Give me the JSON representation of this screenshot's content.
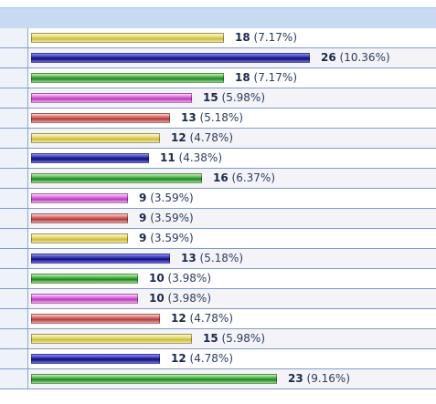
{
  "poll_results": {
    "rows": [
      {
        "count": "18",
        "percent": "(7.17%)",
        "share": 7.17,
        "color": "yellow"
      },
      {
        "count": "26",
        "percent": "(10.36%)",
        "share": 10.36,
        "color": "blue"
      },
      {
        "count": "18",
        "percent": "(7.17%)",
        "share": 7.17,
        "color": "green"
      },
      {
        "count": "15",
        "percent": "(5.98%)",
        "share": 5.98,
        "color": "pink"
      },
      {
        "count": "13",
        "percent": "(5.18%)",
        "share": 5.18,
        "color": "red"
      },
      {
        "count": "12",
        "percent": "(4.78%)",
        "share": 4.78,
        "color": "yellow"
      },
      {
        "count": "11",
        "percent": "(4.38%)",
        "share": 4.38,
        "color": "blue"
      },
      {
        "count": "16",
        "percent": "(6.37%)",
        "share": 6.37,
        "color": "green"
      },
      {
        "count": "9",
        "percent": "(3.59%)",
        "share": 3.59,
        "color": "pink"
      },
      {
        "count": "9",
        "percent": "(3.59%)",
        "share": 3.59,
        "color": "red"
      },
      {
        "count": "9",
        "percent": "(3.59%)",
        "share": 3.59,
        "color": "yellow"
      },
      {
        "count": "13",
        "percent": "(5.18%)",
        "share": 5.18,
        "color": "blue"
      },
      {
        "count": "10",
        "percent": "(3.98%)",
        "share": 3.98,
        "color": "green"
      },
      {
        "count": "10",
        "percent": "(3.98%)",
        "share": 3.98,
        "color": "pink"
      },
      {
        "count": "12",
        "percent": "(4.78%)",
        "share": 4.78,
        "color": "red"
      },
      {
        "count": "15",
        "percent": "(5.98%)",
        "share": 5.98,
        "color": "yellow"
      },
      {
        "count": "12",
        "percent": "(4.78%)",
        "share": 4.78,
        "color": "blue"
      },
      {
        "count": "23",
        "percent": "(9.16%)",
        "share": 9.16,
        "color": "green"
      }
    ]
  }
}
